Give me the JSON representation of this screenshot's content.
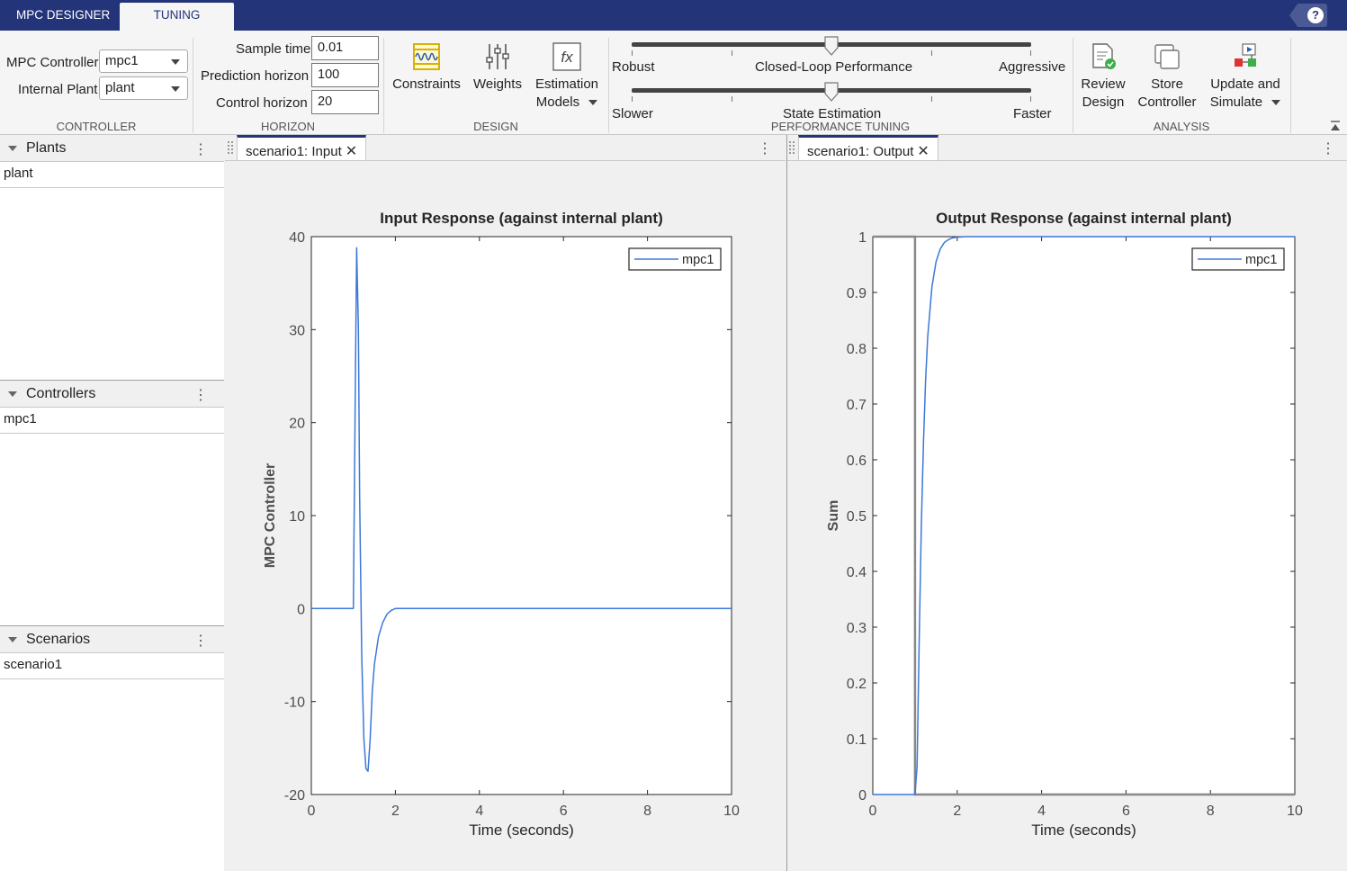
{
  "tabs": {
    "designer": "MPC DESIGNER",
    "tuning": "TUNING"
  },
  "help_icon": "question-mark-icon",
  "controller_section": {
    "mpc_label": "MPC Controller",
    "mpc_value": "mpc1",
    "plant_label": "Internal Plant",
    "plant_value": "plant",
    "title": "CONTROLLER"
  },
  "horizon_section": {
    "sample_time_label": "Sample time",
    "sample_time_value": "0.01",
    "prediction_label": "Prediction horizon",
    "prediction_value": "100",
    "control_label": "Control horizon",
    "control_value": "20",
    "title": "HORIZON"
  },
  "design_section": {
    "constraints": "Constraints",
    "weights": "Weights",
    "estimation_1": "Estimation",
    "estimation_2": "Models",
    "title": "DESIGN"
  },
  "tuning_section": {
    "robust": "Robust",
    "closed_loop": "Closed-Loop Performance",
    "aggressive": "Aggressive",
    "slower": "Slower",
    "state_estimation": "State Estimation",
    "faster": "Faster",
    "performance_level": 0.5,
    "estimation_level": 0.5,
    "title": "PERFORMANCE TUNING"
  },
  "analysis_section": {
    "review_1": "Review",
    "review_2": "Design",
    "store_1": "Store",
    "store_2": "Controller",
    "update_1": "Update and",
    "update_2": "Simulate",
    "title": "ANALYSIS"
  },
  "browser": {
    "plants_title": "Plants",
    "plants_items": [
      "plant"
    ],
    "controllers_title": "Controllers",
    "controllers_items": [
      "mpc1"
    ],
    "scenarios_title": "Scenarios",
    "scenarios_items": [
      "scenario1"
    ]
  },
  "documents": {
    "input_tab": "scenario1: Input",
    "output_tab": "scenario1: Output"
  },
  "chart_data": [
    {
      "type": "line",
      "title": "Input Response (against internal plant)",
      "xlabel": "Time (seconds)",
      "ylabel": "MPC Controller",
      "xlim": [
        0,
        10
      ],
      "ylim": [
        -20,
        40
      ],
      "xticks": [
        "0",
        "2",
        "4",
        "6",
        "8",
        "10"
      ],
      "yticks": [
        "-20",
        "-10",
        "0",
        "10",
        "20",
        "30",
        "40"
      ],
      "legend": "top-right",
      "series": [
        {
          "name": "mpc1",
          "color": "#3b78d8",
          "x": [
            0,
            1.0,
            1.05,
            1.08,
            1.12,
            1.15,
            1.2,
            1.25,
            1.3,
            1.35,
            1.4,
            1.45,
            1.5,
            1.6,
            1.7,
            1.8,
            1.9,
            2.0,
            2.2,
            2.5,
            3.0,
            10
          ],
          "y": [
            0,
            0,
            25,
            38.8,
            30,
            12,
            -5,
            -14,
            -17.2,
            -17.5,
            -14,
            -9,
            -6,
            -3,
            -1.5,
            -0.6,
            -0.2,
            0,
            0,
            0,
            0,
            0
          ]
        }
      ]
    },
    {
      "type": "line",
      "title": "Output Response (against internal plant)",
      "xlabel": "Time (seconds)",
      "ylabel": "Sum",
      "xlim": [
        0,
        10
      ],
      "ylim": [
        0,
        1
      ],
      "xticks": [
        "0",
        "2",
        "4",
        "6",
        "8",
        "10"
      ],
      "yticks": [
        "0",
        "0.1",
        "0.2",
        "0.3",
        "0.4",
        "0.5",
        "0.6",
        "0.7",
        "0.8",
        "0.9",
        "1"
      ],
      "legend": "top-right",
      "reference": {
        "color": "#888888",
        "x": [
          0,
          1.0,
          1.0,
          10
        ],
        "y": [
          1,
          1,
          0,
          0
        ]
      },
      "series": [
        {
          "name": "mpc1",
          "color": "#3b78d8",
          "x": [
            0,
            1.0,
            1.05,
            1.1,
            1.15,
            1.2,
            1.25,
            1.3,
            1.4,
            1.5,
            1.6,
            1.7,
            1.8,
            1.9,
            2.0,
            2.2,
            2.5,
            3.0,
            10
          ],
          "y": [
            0,
            0,
            0.05,
            0.28,
            0.48,
            0.63,
            0.74,
            0.82,
            0.91,
            0.955,
            0.978,
            0.99,
            0.995,
            0.998,
            0.999,
            1,
            1,
            1,
            1
          ]
        }
      ]
    }
  ]
}
